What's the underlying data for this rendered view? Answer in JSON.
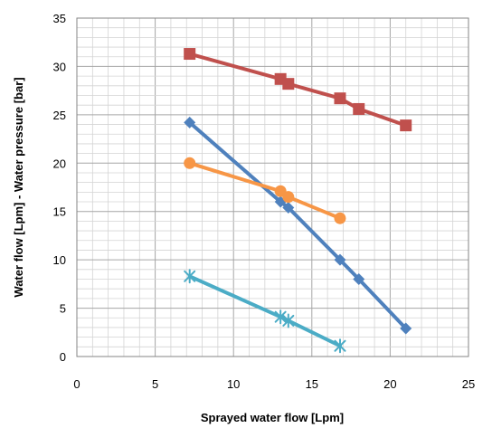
{
  "chart_data": {
    "type": "line",
    "xlabel": "Sprayed water flow [Lpm]",
    "ylabel": "Water flow [Lpm] - Water pressure [bar]",
    "xlim": [
      0,
      25
    ],
    "ylim": [
      0,
      35
    ],
    "x_ticks": [
      "0",
      "5",
      "10",
      "15",
      "20",
      "25"
    ],
    "y_ticks": [
      "0",
      "5",
      "10",
      "15",
      "20",
      "25",
      "30",
      "35"
    ],
    "grid": true,
    "legend": "none",
    "series": [
      {
        "color": "#c0504d",
        "marker": "square",
        "points": [
          [
            7.2,
            31.3
          ],
          [
            13.0,
            28.7
          ],
          [
            13.5,
            28.2
          ],
          [
            16.8,
            26.7
          ],
          [
            18.0,
            25.6
          ],
          [
            21.0,
            23.9
          ]
        ]
      },
      {
        "color": "#4f81bd",
        "marker": "diamond",
        "points": [
          [
            7.2,
            24.2
          ],
          [
            13.0,
            16.0
          ],
          [
            13.5,
            15.4
          ],
          [
            16.8,
            10.0
          ],
          [
            18.0,
            8.0
          ],
          [
            21.0,
            2.9
          ]
        ]
      },
      {
        "color": "#f79646",
        "marker": "circle",
        "points": [
          [
            7.2,
            20.0
          ],
          [
            13.0,
            17.1
          ],
          [
            13.5,
            16.5
          ],
          [
            16.8,
            14.3
          ]
        ]
      },
      {
        "color": "#4bacc6",
        "marker": "star",
        "points": [
          [
            7.2,
            8.3
          ],
          [
            13.0,
            4.1
          ],
          [
            13.5,
            3.7
          ],
          [
            16.8,
            1.1
          ]
        ]
      }
    ]
  }
}
